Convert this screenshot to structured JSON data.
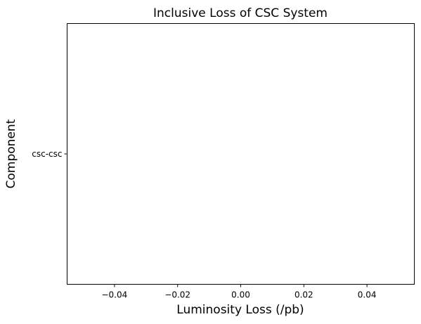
{
  "chart_data": {
    "type": "bar",
    "orientation": "horizontal",
    "title": "Inclusive Loss of CSC System",
    "xlabel": "Luminosity Loss (/pb)",
    "ylabel": "Component",
    "categories": [
      "csc-csc"
    ],
    "values": [
      0
    ],
    "xlim": [
      -0.055,
      0.055
    ],
    "xticks": [
      -0.04,
      -0.02,
      0.0,
      0.02,
      0.04
    ],
    "xtick_labels": [
      "−0.04",
      "−0.02",
      "0.00",
      "0.02",
      "0.04"
    ],
    "grid": false,
    "legend": "none",
    "bar_color": "#1f77b4"
  }
}
